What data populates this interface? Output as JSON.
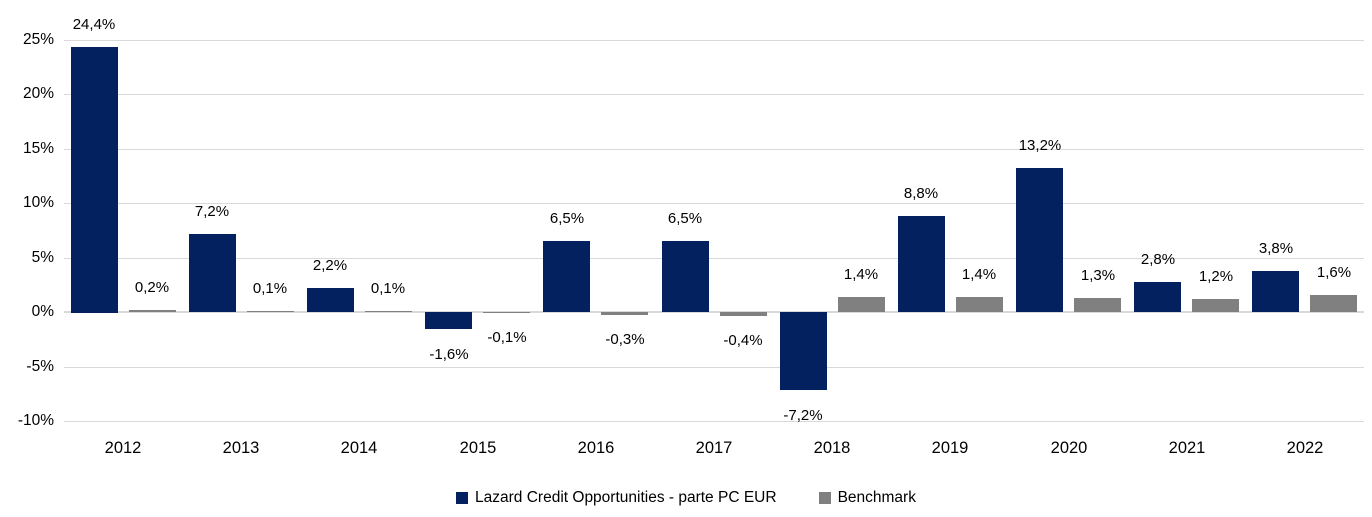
{
  "chart_data": {
    "type": "bar",
    "title": "",
    "xlabel": "",
    "ylabel": "",
    "categories": [
      "2012",
      "2013",
      "2014",
      "2015",
      "2016",
      "2017",
      "2018",
      "2019",
      "2020",
      "2021",
      "2022"
    ],
    "series": [
      {
        "name": "Lazard Credit Opportunities - parte PC EUR",
        "color": "#02215e",
        "values": [
          24.4,
          7.2,
          2.2,
          -1.6,
          6.5,
          6.5,
          -7.2,
          8.8,
          13.2,
          2.8,
          3.8
        ],
        "labels": [
          "24,4%",
          "7,2%",
          "2,2%",
          "-1,6%",
          "6,5%",
          "6,5%",
          "-7,2%",
          "8,8%",
          "13,2%",
          "2,8%",
          "3,8%"
        ]
      },
      {
        "name": "Benchmark",
        "color": "#808080",
        "values": [
          0.2,
          0.1,
          0.1,
          -0.1,
          -0.3,
          -0.4,
          1.4,
          1.4,
          1.3,
          1.2,
          1.6
        ],
        "labels": [
          "0,2%",
          "0,1%",
          "0,1%",
          "-0,1%",
          "-0,3%",
          "-0,4%",
          "1,4%",
          "1,4%",
          "1,3%",
          "1,2%",
          "1,6%"
        ]
      }
    ],
    "y_axis": {
      "min": -10,
      "max": 25,
      "step": 5,
      "tick_values": [
        25,
        20,
        15,
        10,
        5,
        0,
        -5,
        -10
      ],
      "tick_labels": [
        "25%",
        "20%",
        "15%",
        "10%",
        "5%",
        "0%",
        "-5%",
        "-10%"
      ]
    },
    "grid": "horizontal",
    "gridline_color": "#d9d9d9",
    "legend_position": "bottom",
    "value_labels_shown": true,
    "decimal_separator": ","
  }
}
